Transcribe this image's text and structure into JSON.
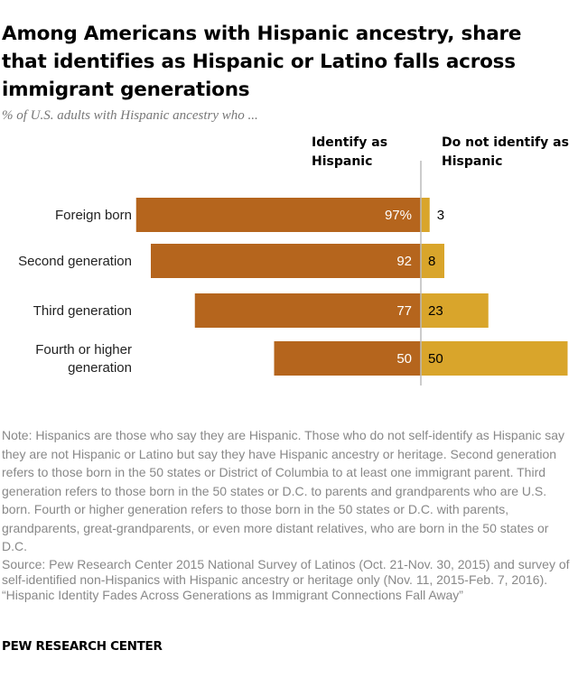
{
  "header": {
    "title": "Among Americans with Hispanic ancestry, share that identifies as Hispanic or Latino falls across immigrant generations",
    "subtitle": "% of U.S. adults with Hispanic ancestry who ..."
  },
  "chart_data": {
    "type": "bar",
    "orientation": "horizontal-diverging",
    "column_headers": {
      "left": "Identify as Hispanic",
      "right": "Do not identify as Hispanic"
    },
    "categories": [
      "Foreign born",
      "Second generation",
      "Third generation",
      "Fourth or higher generation"
    ],
    "series": [
      {
        "name": "Identify as Hispanic",
        "values": [
          97,
          92,
          77,
          50
        ],
        "labels": [
          "97%",
          "92",
          "77",
          "50"
        ],
        "color": "#b5651d"
      },
      {
        "name": "Do not identify as Hispanic",
        "values": [
          3,
          8,
          23,
          50
        ],
        "labels": [
          "3",
          "8",
          "23",
          "50"
        ],
        "color": "#d9a52b"
      }
    ],
    "axis_line_color": "#bbbbbb"
  },
  "footer": {
    "note": "Note: Hispanics are those who say they are Hispanic. Those who do not self-identify as Hispanic say they are not Hispanic or Latino but say they have Hispanic ancestry or heritage. Second generation refers to those born in the 50 states or District of Columbia to at least one immigrant parent. Third generation refers to those born in the 50 states or D.C. to parents and grandparents who are U.S. born. Fourth or higher generation refers to those born in the 50 states or D.C. with parents, grandparents, great-grandparents, or even more distant relatives, who are born in the 50 states or D.C.",
    "source": "Source: Pew Research Center 2015 National Survey of Latinos (Oct. 21-Nov. 30, 2015) and survey of self-identified non-Hispanics with Hispanic ancestry or heritage only (Nov. 11, 2015-Feb. 7, 2016).",
    "report": "“Hispanic Identity Fades Across Generations as Immigrant Connections Fall Away”",
    "credit": "PEW RESEARCH CENTER"
  }
}
